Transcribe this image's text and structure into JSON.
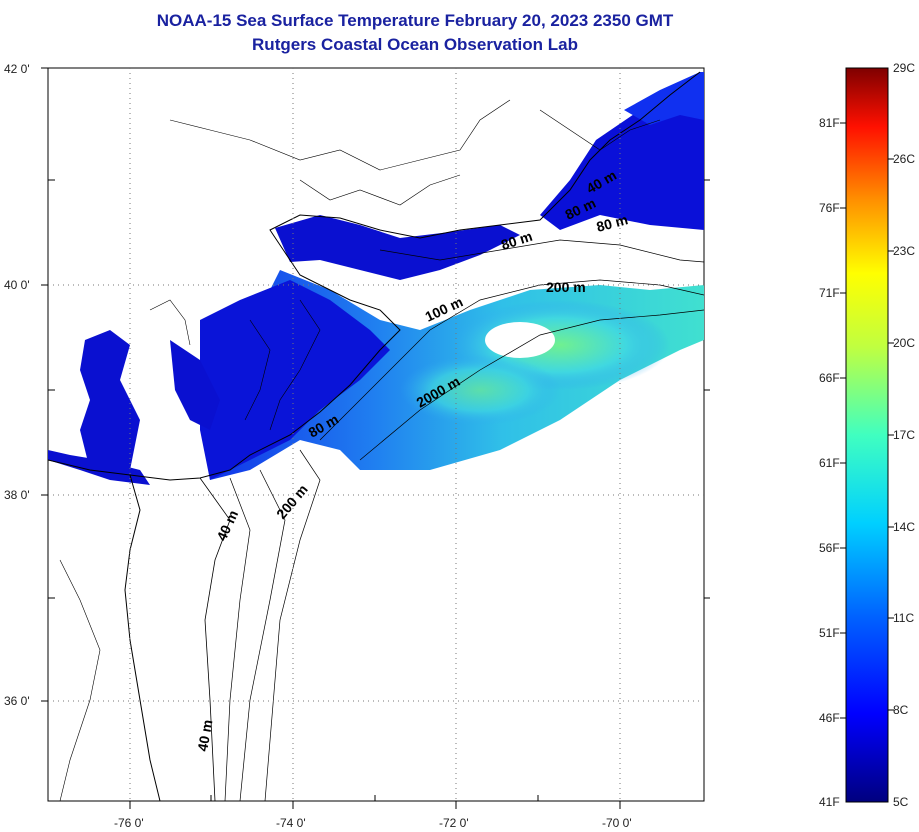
{
  "title": {
    "line1": "NOAA-15 Sea Surface Temperature February 20, 2023 2350 GMT",
    "line2": "Rutgers Coastal Ocean Observation Lab"
  },
  "map": {
    "lat_labels": [
      "42 0'",
      "40 0'",
      "38 0'",
      "36 0'"
    ],
    "lon_labels": [
      "-76 0'",
      "-74 0'",
      "-72 0'",
      "-70 0'"
    ],
    "lat_range": [
      35,
      42
    ],
    "lon_range": [
      -77,
      -69
    ],
    "contour_labels": [
      "80 m",
      "200 m",
      "100 m",
      "2000 m",
      "40 m",
      "80 m",
      "200 m",
      "40 m",
      "40 m",
      "80 m",
      "80 m"
    ],
    "land_color": "#ffffff",
    "coast_color": "#000000",
    "grid": "dotted"
  },
  "colorbar": {
    "f_labels": [
      "81F",
      "76F",
      "71F",
      "66F",
      "61F",
      "56F",
      "51F",
      "46F",
      "41F"
    ],
    "c_labels": [
      "29C",
      "26C",
      "23C",
      "20C",
      "17C",
      "14C",
      "11C",
      "8C",
      "5C"
    ],
    "range_c": [
      5,
      29
    ],
    "colors": [
      "#00008f",
      "#0000ff",
      "#0080ff",
      "#00ffff",
      "#80ff80",
      "#ffff00",
      "#ff8000",
      "#ff0000",
      "#800000"
    ]
  }
}
